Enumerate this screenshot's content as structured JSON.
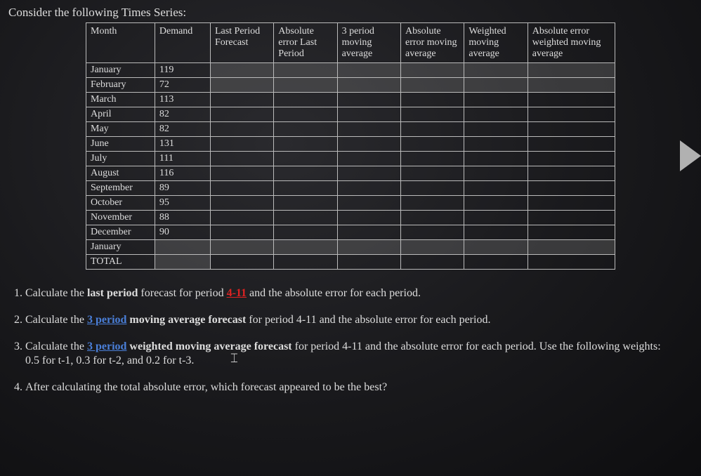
{
  "title": "Consider the following Times Series:",
  "table": {
    "headers": [
      "Month",
      "Demand",
      "Last Period Forecast",
      "Absolute error Last Period",
      "3 period moving average",
      "Absolute error moving average",
      "Weighted moving average",
      "Absolute error weighted moving average"
    ],
    "col_widths_pct": [
      13,
      10.5,
      12,
      12,
      12,
      12,
      12,
      16.5
    ],
    "shaded_demand_rows": [
      12,
      13
    ],
    "shaded_forecast_rows": [
      0,
      1,
      12
    ],
    "rows": [
      {
        "month": "January",
        "demand": "119"
      },
      {
        "month": "February",
        "demand": "72"
      },
      {
        "month": "March",
        "demand": "113"
      },
      {
        "month": "April",
        "demand": "82"
      },
      {
        "month": "May",
        "demand": "82"
      },
      {
        "month": "June",
        "demand": "131"
      },
      {
        "month": "July",
        "demand": "111"
      },
      {
        "month": "August",
        "demand": "116"
      },
      {
        "month": "September",
        "demand": "89"
      },
      {
        "month": "October",
        "demand": "95"
      },
      {
        "month": "November",
        "demand": "88"
      },
      {
        "month": "December",
        "demand": "90"
      },
      {
        "month": "January",
        "demand": ""
      },
      {
        "month": "TOTAL",
        "demand": ""
      }
    ]
  },
  "questions": {
    "q1_a": "Calculate the ",
    "q1_b": "last period",
    "q1_c": " forecast for period ",
    "q1_d": "4-11",
    "q1_e": " and the absolute error for each period.",
    "q2_a": "Calculate the ",
    "q2_b": "3 period",
    "q2_c": " ",
    "q2_d": "moving average forecast",
    "q2_e": " for period 4-11 and the absolute error for each period.",
    "q3_a": "Calculate the ",
    "q3_b": "3 period",
    "q3_c": " ",
    "q3_d": "weighted moving average forecast",
    "q3_e": " for period 4-11 and the absolute error for each period. Use the following weights: 0.5 for t-1, 0.3 for t-2, and 0.2 for t-3.",
    "q4": "After calculating the total absolute error, which forecast appeared to be the best?"
  },
  "colors": {
    "background_center": "#2a2a2e",
    "background_edge": "#0d0d0f",
    "text": "#dddddd",
    "border": "#bbbbbb",
    "shaded_cell": "rgba(120,120,120,0.35)",
    "red": "#d22",
    "blue": "#4a7fd8",
    "arrow": "#cccccc"
  }
}
